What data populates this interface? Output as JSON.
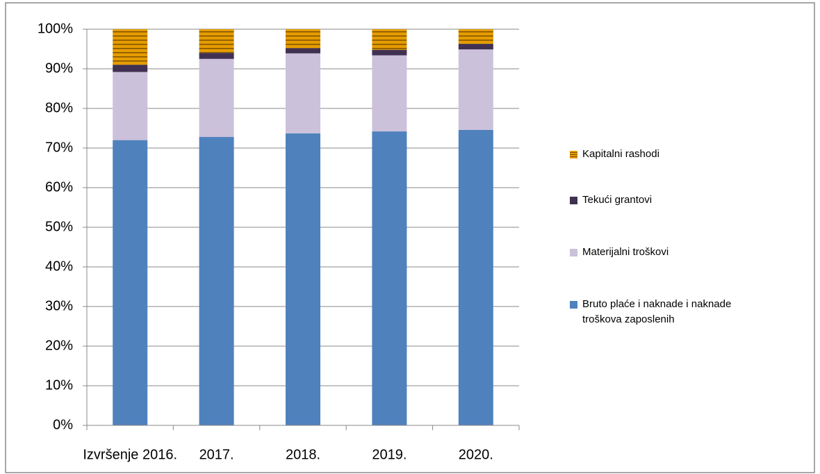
{
  "chart_data": {
    "type": "stacked_bar",
    "categories": [
      "Izvršenje 2016.",
      "2017.",
      "2018.",
      "2019.",
      "2020."
    ],
    "series": [
      {
        "name": "Bruto plaće i naknade i naknade troškova zaposlenih",
        "color": "#4f81bd",
        "values": [
          72,
          72.8,
          73.7,
          74.2,
          74.6
        ]
      },
      {
        "name": "Materijalni troškovi",
        "color": "#ccc1da",
        "values": [
          17.2,
          19.7,
          20.2,
          19.2,
          20.3
        ]
      },
      {
        "name": "Tekući grantovi",
        "color": "#403152",
        "values": [
          1.8,
          1.5,
          1.3,
          1.4,
          1.4
        ]
      },
      {
        "name": "Kapitalni rashodi",
        "color": "#e59c00",
        "striped": true,
        "values": [
          9,
          6,
          4.8,
          5.2,
          3.7
        ]
      }
    ],
    "ylim": [
      0,
      100
    ],
    "yticks": [
      {
        "value": 0,
        "label": "0%"
      },
      {
        "value": 10,
        "label": "10%"
      },
      {
        "value": 20,
        "label": "20%"
      },
      {
        "value": 30,
        "label": "30%"
      },
      {
        "value": 40,
        "label": "40%"
      },
      {
        "value": 50,
        "label": "50%"
      },
      {
        "value": 60,
        "label": "60%"
      },
      {
        "value": 70,
        "label": "70%"
      },
      {
        "value": 80,
        "label": "80%"
      },
      {
        "value": 90,
        "label": "90%"
      },
      {
        "value": 100,
        "label": "100%"
      }
    ],
    "grid": true,
    "legend": "right"
  }
}
